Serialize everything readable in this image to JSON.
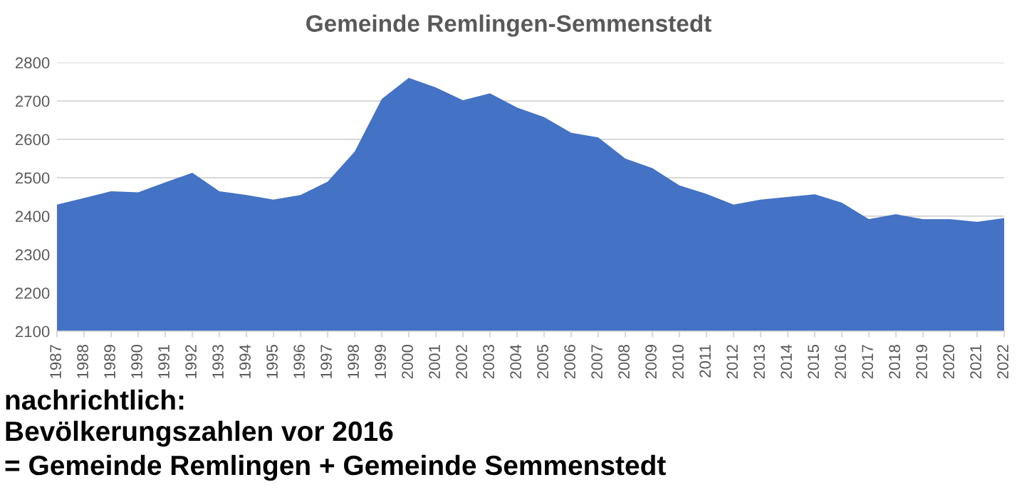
{
  "chart_data": {
    "type": "area",
    "title": "Gemeinde Remlingen-Semmenstedt",
    "categories": [
      "1987",
      "1988",
      "1989",
      "1990",
      "1991",
      "1992",
      "1993",
      "1994",
      "1995",
      "1996",
      "1997",
      "1998",
      "1999",
      "2000",
      "2001",
      "2002",
      "2003",
      "2004",
      "2005",
      "2006",
      "2007",
      "2008",
      "2009",
      "2010",
      "2011",
      "2012",
      "2013",
      "2014",
      "2015",
      "2016",
      "2017",
      "2018",
      "2019",
      "2020",
      "2021",
      "2022"
    ],
    "series": [
      {
        "color": "#4472c4",
        "values": [
          2430,
          2447,
          2465,
          2462,
          2488,
          2513,
          2465,
          2455,
          2443,
          2455,
          2490,
          2568,
          2705,
          2760,
          2735,
          2702,
          2720,
          2683,
          2658,
          2617,
          2605,
          2550,
          2525,
          2480,
          2458,
          2430,
          2443,
          2450,
          2457,
          2435,
          2392,
          2405,
          2392,
          2392,
          2385,
          2395
        ]
      }
    ],
    "ylim": [
      2100,
      2800
    ],
    "yticks": [
      2100,
      2200,
      2300,
      2400,
      2500,
      2600,
      2700,
      2800
    ],
    "grid": "y",
    "legend": false,
    "annotations": [
      "nachrichtlich:",
      "Bevölkerungszahlen vor 2016",
      "= Gemeinde Remlingen + Gemeinde Semmenstedt"
    ]
  }
}
